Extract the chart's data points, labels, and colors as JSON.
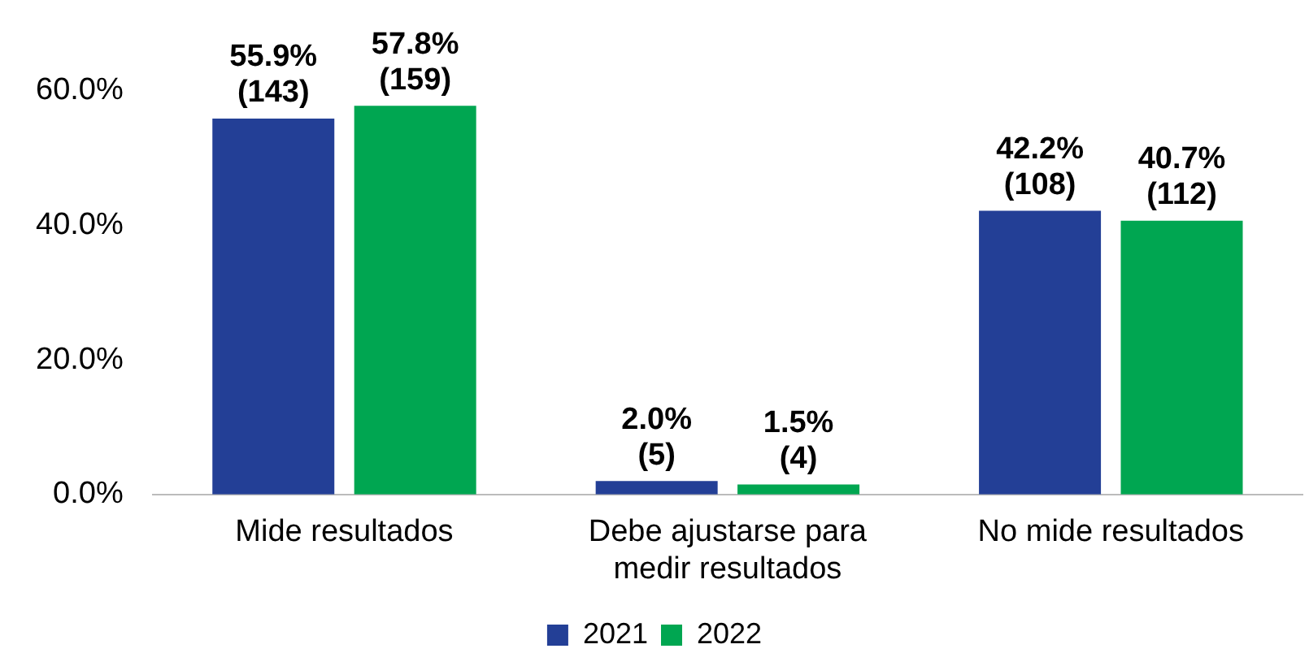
{
  "chart_data": {
    "type": "bar",
    "categories": [
      "Mide resultados",
      "Debe ajustarse para medir resultados",
      "No mide resultados"
    ],
    "series": [
      {
        "name": "2021",
        "color": "#233f96",
        "values": [
          55.9,
          2.0,
          42.2
        ],
        "value_labels": [
          "55.9% (143)",
          "2.0% (5)",
          "42.2% (108)"
        ]
      },
      {
        "name": "2022",
        "color": "#00a651",
        "values": [
          57.8,
          1.5,
          40.7
        ],
        "value_labels": [
          "57.8% (159)",
          "1.5% (4)",
          "40.7% (112)"
        ]
      }
    ],
    "ylim": [
      0,
      60
    ],
    "yticks": [
      {
        "value": 0,
        "label": "0.0%"
      },
      {
        "value": 20,
        "label": "20.0%"
      },
      {
        "value": 40,
        "label": "40.0%"
      },
      {
        "value": 60,
        "label": "60.0%"
      }
    ],
    "grid": false,
    "legend": "bottom"
  }
}
